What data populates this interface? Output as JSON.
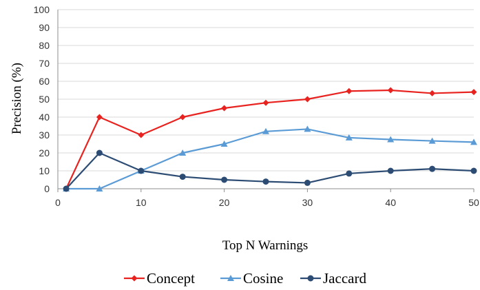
{
  "chart_data": {
    "type": "line",
    "title": "",
    "xlabel": "Top N Warnings",
    "ylabel": "Precision (%)",
    "xlim": [
      0,
      50
    ],
    "ylim": [
      0,
      100
    ],
    "xticks": [
      0,
      10,
      20,
      30,
      40,
      50
    ],
    "yticks": [
      0,
      10,
      20,
      30,
      40,
      50,
      60,
      70,
      80,
      90,
      100
    ],
    "grid": "horizontal",
    "legend_position": "bottom",
    "x": [
      1,
      5,
      10,
      15,
      20,
      25,
      30,
      35,
      40,
      45,
      50
    ],
    "series": [
      {
        "name": "Concept",
        "color": "#e8231f",
        "marker": "diamond",
        "values": [
          0,
          40,
          30,
          40,
          45,
          48,
          50,
          54.5,
          55,
          53.3,
          54
        ]
      },
      {
        "name": "Cosine",
        "color": "#5b9bd5",
        "marker": "triangle",
        "values": [
          0,
          0,
          10,
          20,
          25,
          32,
          33.3,
          28.5,
          27.5,
          26.7,
          26
        ]
      },
      {
        "name": "Jaccard",
        "color": "#2c4c74",
        "marker": "circle",
        "values": [
          0,
          20,
          10,
          6.7,
          5,
          4,
          3.3,
          8.5,
          10,
          11.1,
          10
        ]
      }
    ]
  }
}
